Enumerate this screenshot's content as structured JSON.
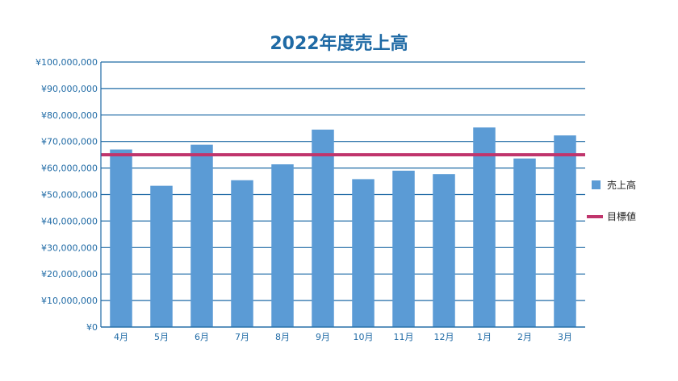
{
  "chart_data": {
    "type": "bar",
    "title": "2022年度売上高",
    "xlabel": "",
    "ylabel": "",
    "ylim": [
      0,
      100000000
    ],
    "yticks": [
      0,
      10000000,
      20000000,
      30000000,
      40000000,
      50000000,
      60000000,
      70000000,
      80000000,
      90000000,
      100000000
    ],
    "ytick_labels": [
      "¥0",
      "¥10,000,000",
      "¥20,000,000",
      "¥30,000,000",
      "¥40,000,000",
      "¥50,000,000",
      "¥60,000,000",
      "¥70,000,000",
      "¥80,000,000",
      "¥90,000,000",
      "¥100,000,000"
    ],
    "categories": [
      "4月",
      "5月",
      "6月",
      "7月",
      "8月",
      "9月",
      "10月",
      "11月",
      "12月",
      "1月",
      "2月",
      "3月"
    ],
    "series": [
      {
        "name": "売上高",
        "kind": "bar",
        "color": "#5b9bd5",
        "values": [
          67000000,
          53300000,
          68800000,
          55400000,
          61400000,
          74500000,
          55800000,
          59000000,
          57700000,
          75300000,
          63600000,
          72300000
        ]
      },
      {
        "name": "目標値",
        "kind": "line",
        "color": "#c0356c",
        "value": 65000000
      }
    ],
    "grid": true,
    "legend_position": "right"
  }
}
